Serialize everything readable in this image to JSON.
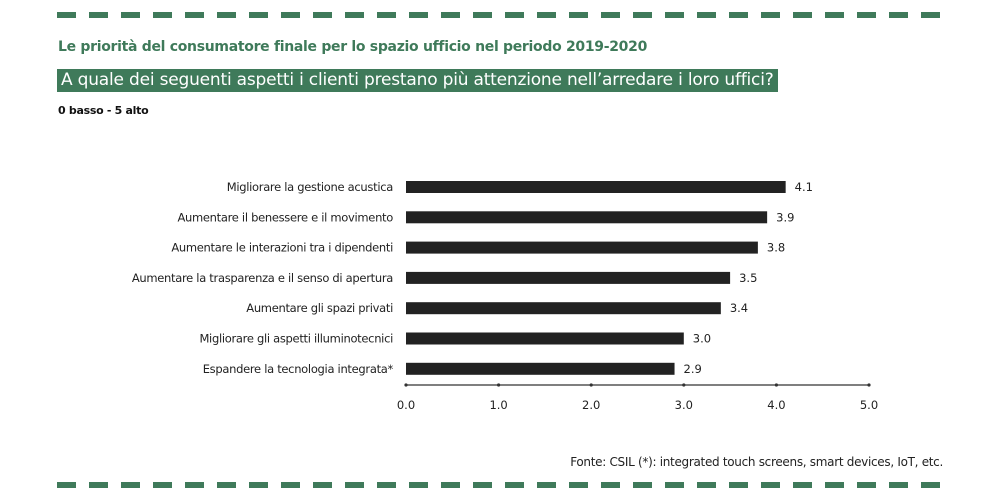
{
  "header": {
    "title": "Le priorità del consumatore finale per lo spazio ufficio nel periodo 2019-2020",
    "question": "A quale dei seguenti aspetti i clienti prestano più attenzione nell’arredare i loro uffici?",
    "scale_note": "0 basso - 5 alto"
  },
  "footer": {
    "source": "Fonte: CSIL  (*): integrated touch screens, smart devices, IoT, etc."
  },
  "colors": {
    "accent": "#3f7a5a",
    "bar": "#222222",
    "axis": "#333333"
  },
  "chart_data": {
    "type": "bar",
    "orientation": "horizontal",
    "title": "Le priorità del consumatore finale per lo spazio ufficio nel periodo 2019-2020",
    "subtitle": "A quale dei seguenti aspetti i clienti prestano più attenzione nell’arredare i loro uffici?",
    "xlabel": "",
    "ylabel": "",
    "categories": [
      "Migliorare la gestione acustica",
      "Aumentare il benessere e il movimento",
      "Aumentare le interazioni tra i dipendenti",
      "Aumentare la trasparenza e il senso di apertura",
      "Aumentare gli spazi privati",
      "Migliorare gli aspetti illuminotecnici",
      "Espandere la tecnologia integrata*"
    ],
    "values": [
      4.1,
      3.9,
      3.8,
      3.5,
      3.4,
      3.0,
      2.9
    ],
    "value_labels": [
      "4.1",
      "3.9",
      "3.8",
      "3.5",
      "3.4",
      "3.0",
      "2.9"
    ],
    "xlim": [
      0,
      5
    ],
    "x_ticks": [
      0,
      1,
      2,
      3,
      4,
      5
    ],
    "x_tick_labels": [
      "0.0",
      "1.0",
      "2.0",
      "3.0",
      "4.0",
      "5.0"
    ],
    "grid": false,
    "legend": "none"
  }
}
